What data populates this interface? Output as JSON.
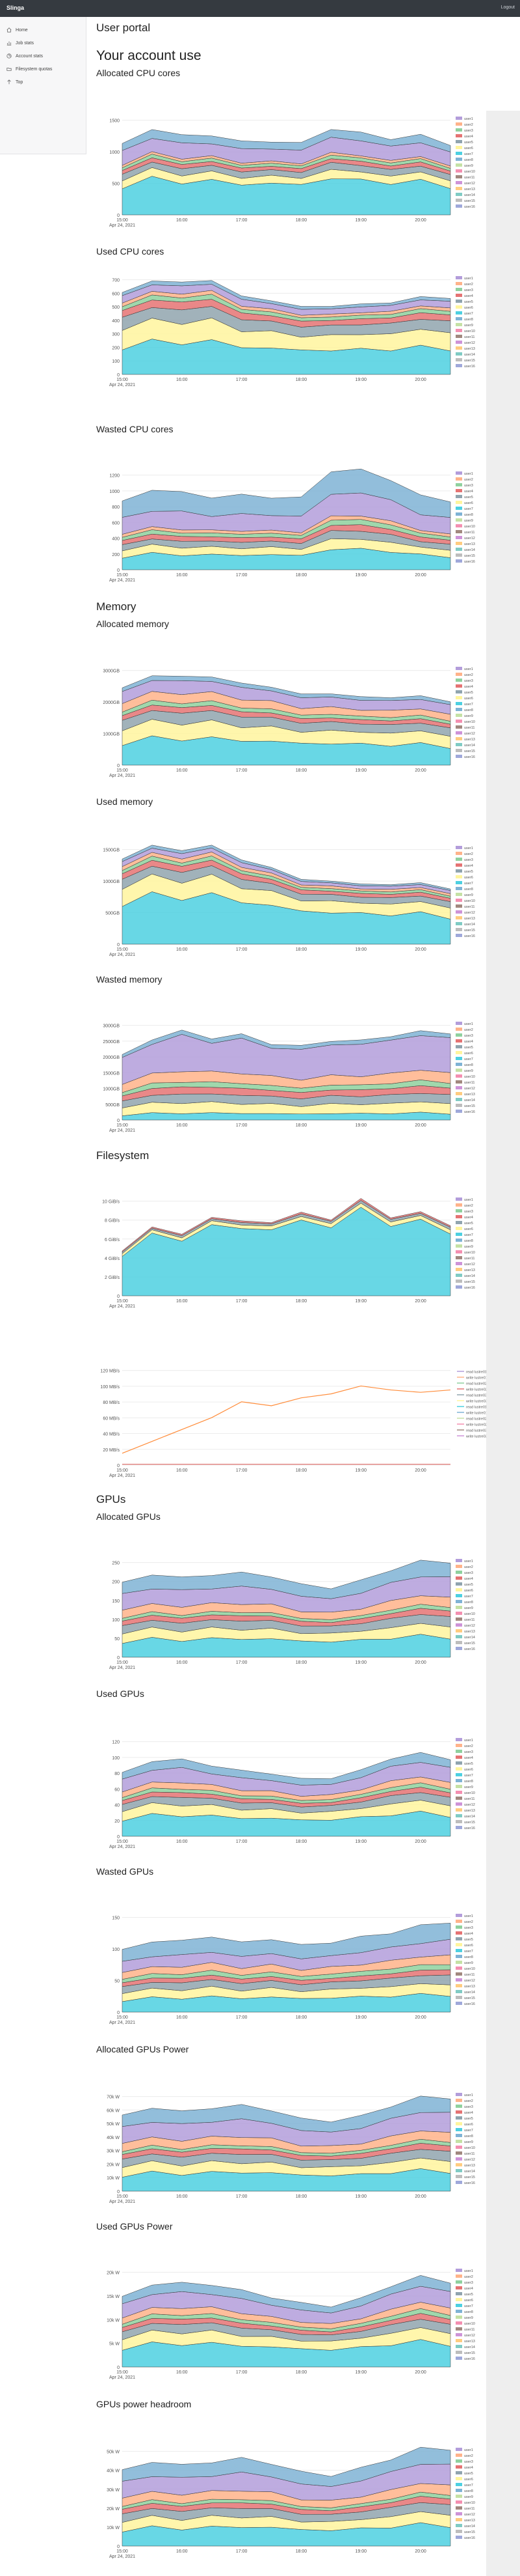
{
  "app": {
    "brand": "Slinga",
    "logout": "Logout"
  },
  "sidebar": {
    "items": [
      {
        "label": "Home",
        "icon": "home-icon"
      },
      {
        "label": "Job stats",
        "icon": "chart-icon"
      },
      {
        "label": "Account stats",
        "icon": "pie-icon"
      },
      {
        "label": "Filesystem quotas",
        "icon": "folder-icon"
      },
      {
        "label": "Top",
        "icon": "arrow-up-icon"
      }
    ]
  },
  "page": {
    "title": "User portal",
    "heading": "Your account use"
  },
  "sections": {
    "cpu": "",
    "memory": "Memory",
    "filesystem": "Filesystem",
    "gpus": "GPUs"
  },
  "x_axis": {
    "ticks": [
      "15:00\nApr 24, 2021",
      "16:00",
      "17:00",
      "18:00",
      "19:00",
      "20:00"
    ]
  },
  "legend_labels": [
    "user1",
    "user2",
    "user3",
    "user4",
    "user5",
    "user6",
    "user7",
    "user8",
    "user9",
    "user10",
    "user11",
    "user12",
    "user13",
    "user14",
    "user15",
    "user16"
  ],
  "lustre_legend": [
    "read lustre01 bw",
    "write lustre01 bw",
    "read lustre02 bw",
    "write lustre02 bw",
    "read lustre03 bw",
    "write lustre03 bw",
    "read lustre01 ops",
    "write lustre01 ops",
    "read lustre02 ops",
    "write lustre02 ops",
    "read lustre03 ops",
    "write lustre03 ops"
  ],
  "palette": [
    "#b39ddb",
    "#ffb38a",
    "#8fd19e",
    "#e57373",
    "#90a4ae",
    "#fff59d",
    "#4dd0e1",
    "#7fb3d5",
    "#c5e1a5",
    "#f48fb1",
    "#a1887f",
    "#ce93d8",
    "#ffcc80",
    "#80cbc4",
    "#bdbdbd",
    "#9fa8da"
  ],
  "chart_data": [
    {
      "name": "Allocated CPU cores",
      "title": "Allocated CPU cores",
      "type": "area",
      "ylabel": "",
      "yticks": [
        "0",
        "500",
        "1000",
        "1500"
      ],
      "ylim": [
        0,
        2000
      ],
      "x": [
        "15:00",
        "15:30",
        "16:00",
        "16:30",
        "17:00",
        "17:30",
        "18:00",
        "18:30",
        "19:00",
        "19:30",
        "20:00",
        "20:15"
      ],
      "total": [
        1420,
        1560,
        1540,
        1460,
        1380,
        1350,
        1330,
        1610,
        1500,
        1450,
        1450,
        1360
      ],
      "shares": [
        0.42,
        0.1,
        0.08,
        0.05,
        0.04,
        0.03,
        0.18,
        0.1
      ]
    },
    {
      "name": "Used CPU cores",
      "title": "Used CPU cores",
      "type": "area",
      "yticks": [
        "0",
        "100",
        "200",
        "300",
        "400",
        "500",
        "600",
        "700"
      ],
      "ylim": [
        0,
        700
      ],
      "x": [
        "15:00",
        "15:30",
        "16:00",
        "16:30",
        "17:00",
        "17:30",
        "18:00",
        "18:30",
        "19:00",
        "19:30",
        "20:00",
        "20:15"
      ],
      "total": [
        560,
        600,
        620,
        600,
        520,
        470,
        450,
        440,
        460,
        470,
        500,
        510
      ],
      "shares": [
        0.35,
        0.22,
        0.14,
        0.08,
        0.05,
        0.04,
        0.08,
        0.04
      ]
    },
    {
      "name": "Wasted CPU cores",
      "title": "Wasted CPU cores",
      "type": "area",
      "yticks": [
        "0",
        "200",
        "400",
        "600",
        "800",
        "1000",
        "1200"
      ],
      "ylim": [
        0,
        1300
      ],
      "x": [
        "15:00",
        "15:30",
        "16:00",
        "16:30",
        "17:00",
        "17:30",
        "18:00",
        "18:30",
        "19:00",
        "19:30",
        "20:00",
        "20:15"
      ],
      "total": [
        860,
        960,
        950,
        880,
        900,
        880,
        860,
        1220,
        1230,
        1130,
        880,
        850
      ],
      "shares": [
        0.2,
        0.1,
        0.08,
        0.06,
        0.05,
        0.04,
        0.22,
        0.25
      ]
    },
    {
      "name": "Allocated memory",
      "title": "Allocated memory",
      "type": "area",
      "yticks": [
        "0",
        "1000GB",
        "2000GB",
        "3000GB"
      ],
      "ylim": [
        0,
        3500
      ],
      "x": [
        "15:00",
        "15:30",
        "16:00",
        "16:30",
        "17:00",
        "17:30",
        "18:00",
        "18:30",
        "19:00",
        "19:30",
        "20:00",
        "20:15"
      ],
      "total": [
        2600,
        2900,
        2950,
        2850,
        2700,
        2500,
        2350,
        2300,
        2250,
        2200,
        2250,
        2100
      ],
      "shares": [
        0.3,
        0.18,
        0.12,
        0.06,
        0.05,
        0.1,
        0.14,
        0.05
      ]
    },
    {
      "name": "Used memory",
      "title": "Used memory",
      "type": "area",
      "yticks": [
        "0",
        "500GB",
        "1000GB",
        "1500GB"
      ],
      "ylim": [
        0,
        1800
      ],
      "x": [
        "15:00",
        "15:30",
        "16:00",
        "16:30",
        "17:00",
        "17:30",
        "18:00",
        "18:30",
        "19:00",
        "19:30",
        "20:00",
        "20:15"
      ],
      "total": [
        1550,
        1600,
        1650,
        1600,
        1450,
        1250,
        1100,
        1050,
        1000,
        1020,
        1000,
        980
      ],
      "shares": [
        0.5,
        0.18,
        0.1,
        0.06,
        0.04,
        0.04,
        0.05,
        0.03
      ]
    },
    {
      "name": "Wasted memory",
      "title": "Wasted memory",
      "type": "area",
      "yticks": [
        "0",
        "500GB",
        "1000GB",
        "1500GB",
        "2000GB",
        "2500GB",
        "3000GB"
      ],
      "ylim": [
        0,
        3200
      ],
      "x": [
        "15:00",
        "15:30",
        "16:00",
        "16:30",
        "17:00",
        "17:30",
        "18:00",
        "18:30",
        "19:00",
        "19:30",
        "20:00",
        "20:15"
      ],
      "total": [
        1900,
        2500,
        2600,
        2550,
        2500,
        2300,
        2200,
        2350,
        2400,
        2450,
        2700,
        2500
      ],
      "shares": [
        0.08,
        0.12,
        0.1,
        0.08,
        0.06,
        0.12,
        0.39,
        0.05
      ]
    },
    {
      "name": "Filesystem bandwidth",
      "title": "",
      "type": "area",
      "yticks": [
        "0",
        "2 GiB/s",
        "4 GiB/s",
        "6 GiB/s",
        "8 GiB/s",
        "10 GiB/s"
      ],
      "ylim": [
        0,
        11
      ],
      "x": [
        "15:00",
        "15:30",
        "16:00",
        "16:30",
        "17:00",
        "17:30",
        "18:00",
        "18:30",
        "19:00",
        "19:30",
        "20:00",
        "20:15"
      ],
      "total": [
        5.5,
        6.5,
        7,
        7.5,
        8,
        7.2,
        8.5,
        7.8,
        9.5,
        8.5,
        8,
        8.2
      ],
      "shares": [
        0.9,
        0.05,
        0.03,
        0.02
      ]
    },
    {
      "name": "Filesystem operations",
      "title": "",
      "type": "line",
      "yticks": [
        "0",
        "20 MB/s",
        "40 MB/s",
        "60 MB/s",
        "80 MB/s",
        "100 MB/s",
        "120 MB/s"
      ],
      "ylim": [
        0,
        130
      ],
      "x": [
        "15:00",
        "15:30",
        "16:00",
        "16:30",
        "17:00",
        "17:30",
        "18:00",
        "18:30",
        "19:00",
        "19:30",
        "20:00",
        "20:15"
      ],
      "values": [
        15,
        30,
        45,
        60,
        80,
        75,
        85,
        90,
        100,
        95,
        92,
        95
      ]
    },
    {
      "name": "Allocated GPUs",
      "title": "Allocated GPUs",
      "type": "area",
      "yticks": [
        "0",
        "50",
        "100",
        "150",
        "200",
        "250"
      ],
      "ylim": [
        0,
        280
      ],
      "x": [
        "15:00",
        "15:30",
        "16:00",
        "16:30",
        "17:00",
        "17:30",
        "18:00",
        "18:30",
        "19:00",
        "19:30",
        "20:00",
        "20:15"
      ],
      "total": [
        200,
        215,
        210,
        215,
        220,
        210,
        190,
        180,
        200,
        230,
        250,
        250
      ],
      "shares": [
        0.22,
        0.12,
        0.1,
        0.06,
        0.04,
        0.1,
        0.2,
        0.16
      ]
    },
    {
      "name": "Used GPUs",
      "title": "Used GPUs",
      "type": "area",
      "yticks": [
        "0",
        "20",
        "40",
        "60",
        "80",
        "100",
        "120"
      ],
      "ylim": [
        0,
        130
      ],
      "x": [
        "15:00",
        "15:30",
        "16:00",
        "16:30",
        "17:00",
        "17:30",
        "18:00",
        "18:30",
        "19:00",
        "19:30",
        "20:00",
        "20:15"
      ],
      "total": [
        80,
        90,
        95,
        85,
        80,
        75,
        70,
        70,
        80,
        95,
        100,
        95
      ],
      "shares": [
        0.28,
        0.14,
        0.1,
        0.06,
        0.05,
        0.08,
        0.18,
        0.11
      ]
    },
    {
      "name": "Wasted GPUs",
      "title": "Wasted GPUs",
      "type": "area",
      "yticks": [
        "0",
        "50",
        "100",
        "150"
      ],
      "ylim": [
        0,
        200
      ],
      "x": [
        "15:00",
        "15:30",
        "16:00",
        "16:30",
        "17:00",
        "17:30",
        "18:00",
        "18:30",
        "19:00",
        "19:30",
        "20:00",
        "20:15"
      ],
      "total": [
        120,
        130,
        135,
        140,
        130,
        135,
        125,
        130,
        140,
        150,
        160,
        170
      ],
      "shares": [
        0.2,
        0.12,
        0.1,
        0.06,
        0.06,
        0.1,
        0.16,
        0.2
      ]
    },
    {
      "name": "Allocated GPUs Power",
      "title": "Allocated GPUs Power",
      "type": "area",
      "yticks": [
        "0",
        "10k W",
        "20k W",
        "30k W",
        "40k W",
        "50k W",
        "60k W",
        "70k W"
      ],
      "ylim": [
        0,
        80
      ],
      "x": [
        "15:00",
        "15:30",
        "16:00",
        "16:30",
        "17:00",
        "17:30",
        "18:00",
        "18:30",
        "19:00",
        "19:30",
        "20:00",
        "20:15"
      ],
      "total": [
        58,
        62,
        60,
        62,
        64,
        60,
        54,
        52,
        56,
        64,
        70,
        70
      ],
      "shares": [
        0.22,
        0.12,
        0.1,
        0.06,
        0.04,
        0.1,
        0.2,
        0.16
      ]
    },
    {
      "name": "Used GPUs Power",
      "title": "Used GPUs Power",
      "type": "area",
      "yticks": [
        "0",
        "5k W",
        "10k W",
        "15k W",
        "20k W"
      ],
      "ylim": [
        0,
        25
      ],
      "x": [
        "15:00",
        "15:30",
        "16:00",
        "16:30",
        "17:00",
        "17:30",
        "18:00",
        "18:30",
        "19:00",
        "19:30",
        "20:00",
        "20:15"
      ],
      "total": [
        17,
        19,
        20,
        19,
        18,
        16,
        15,
        14,
        16,
        19,
        21,
        20
      ],
      "shares": [
        0.28,
        0.14,
        0.1,
        0.06,
        0.05,
        0.08,
        0.18,
        0.11
      ]
    },
    {
      "name": "GPUs power headroom",
      "title": "GPUs power headroom",
      "type": "area",
      "yticks": [
        "0",
        "10k W",
        "20k W",
        "30k W",
        "40k W",
        "50k W"
      ],
      "ylim": [
        0,
        55
      ],
      "x": [
        "15:00",
        "15:30",
        "16:00",
        "16:30",
        "17:00",
        "17:30",
        "18:00",
        "18:30",
        "19:00",
        "19:30",
        "20:00",
        "20:15"
      ],
      "total": [
        40,
        43,
        42,
        43,
        45,
        42,
        38,
        36,
        40,
        45,
        50,
        50
      ],
      "shares": [
        0.22,
        0.12,
        0.1,
        0.06,
        0.04,
        0.1,
        0.2,
        0.16
      ]
    }
  ]
}
